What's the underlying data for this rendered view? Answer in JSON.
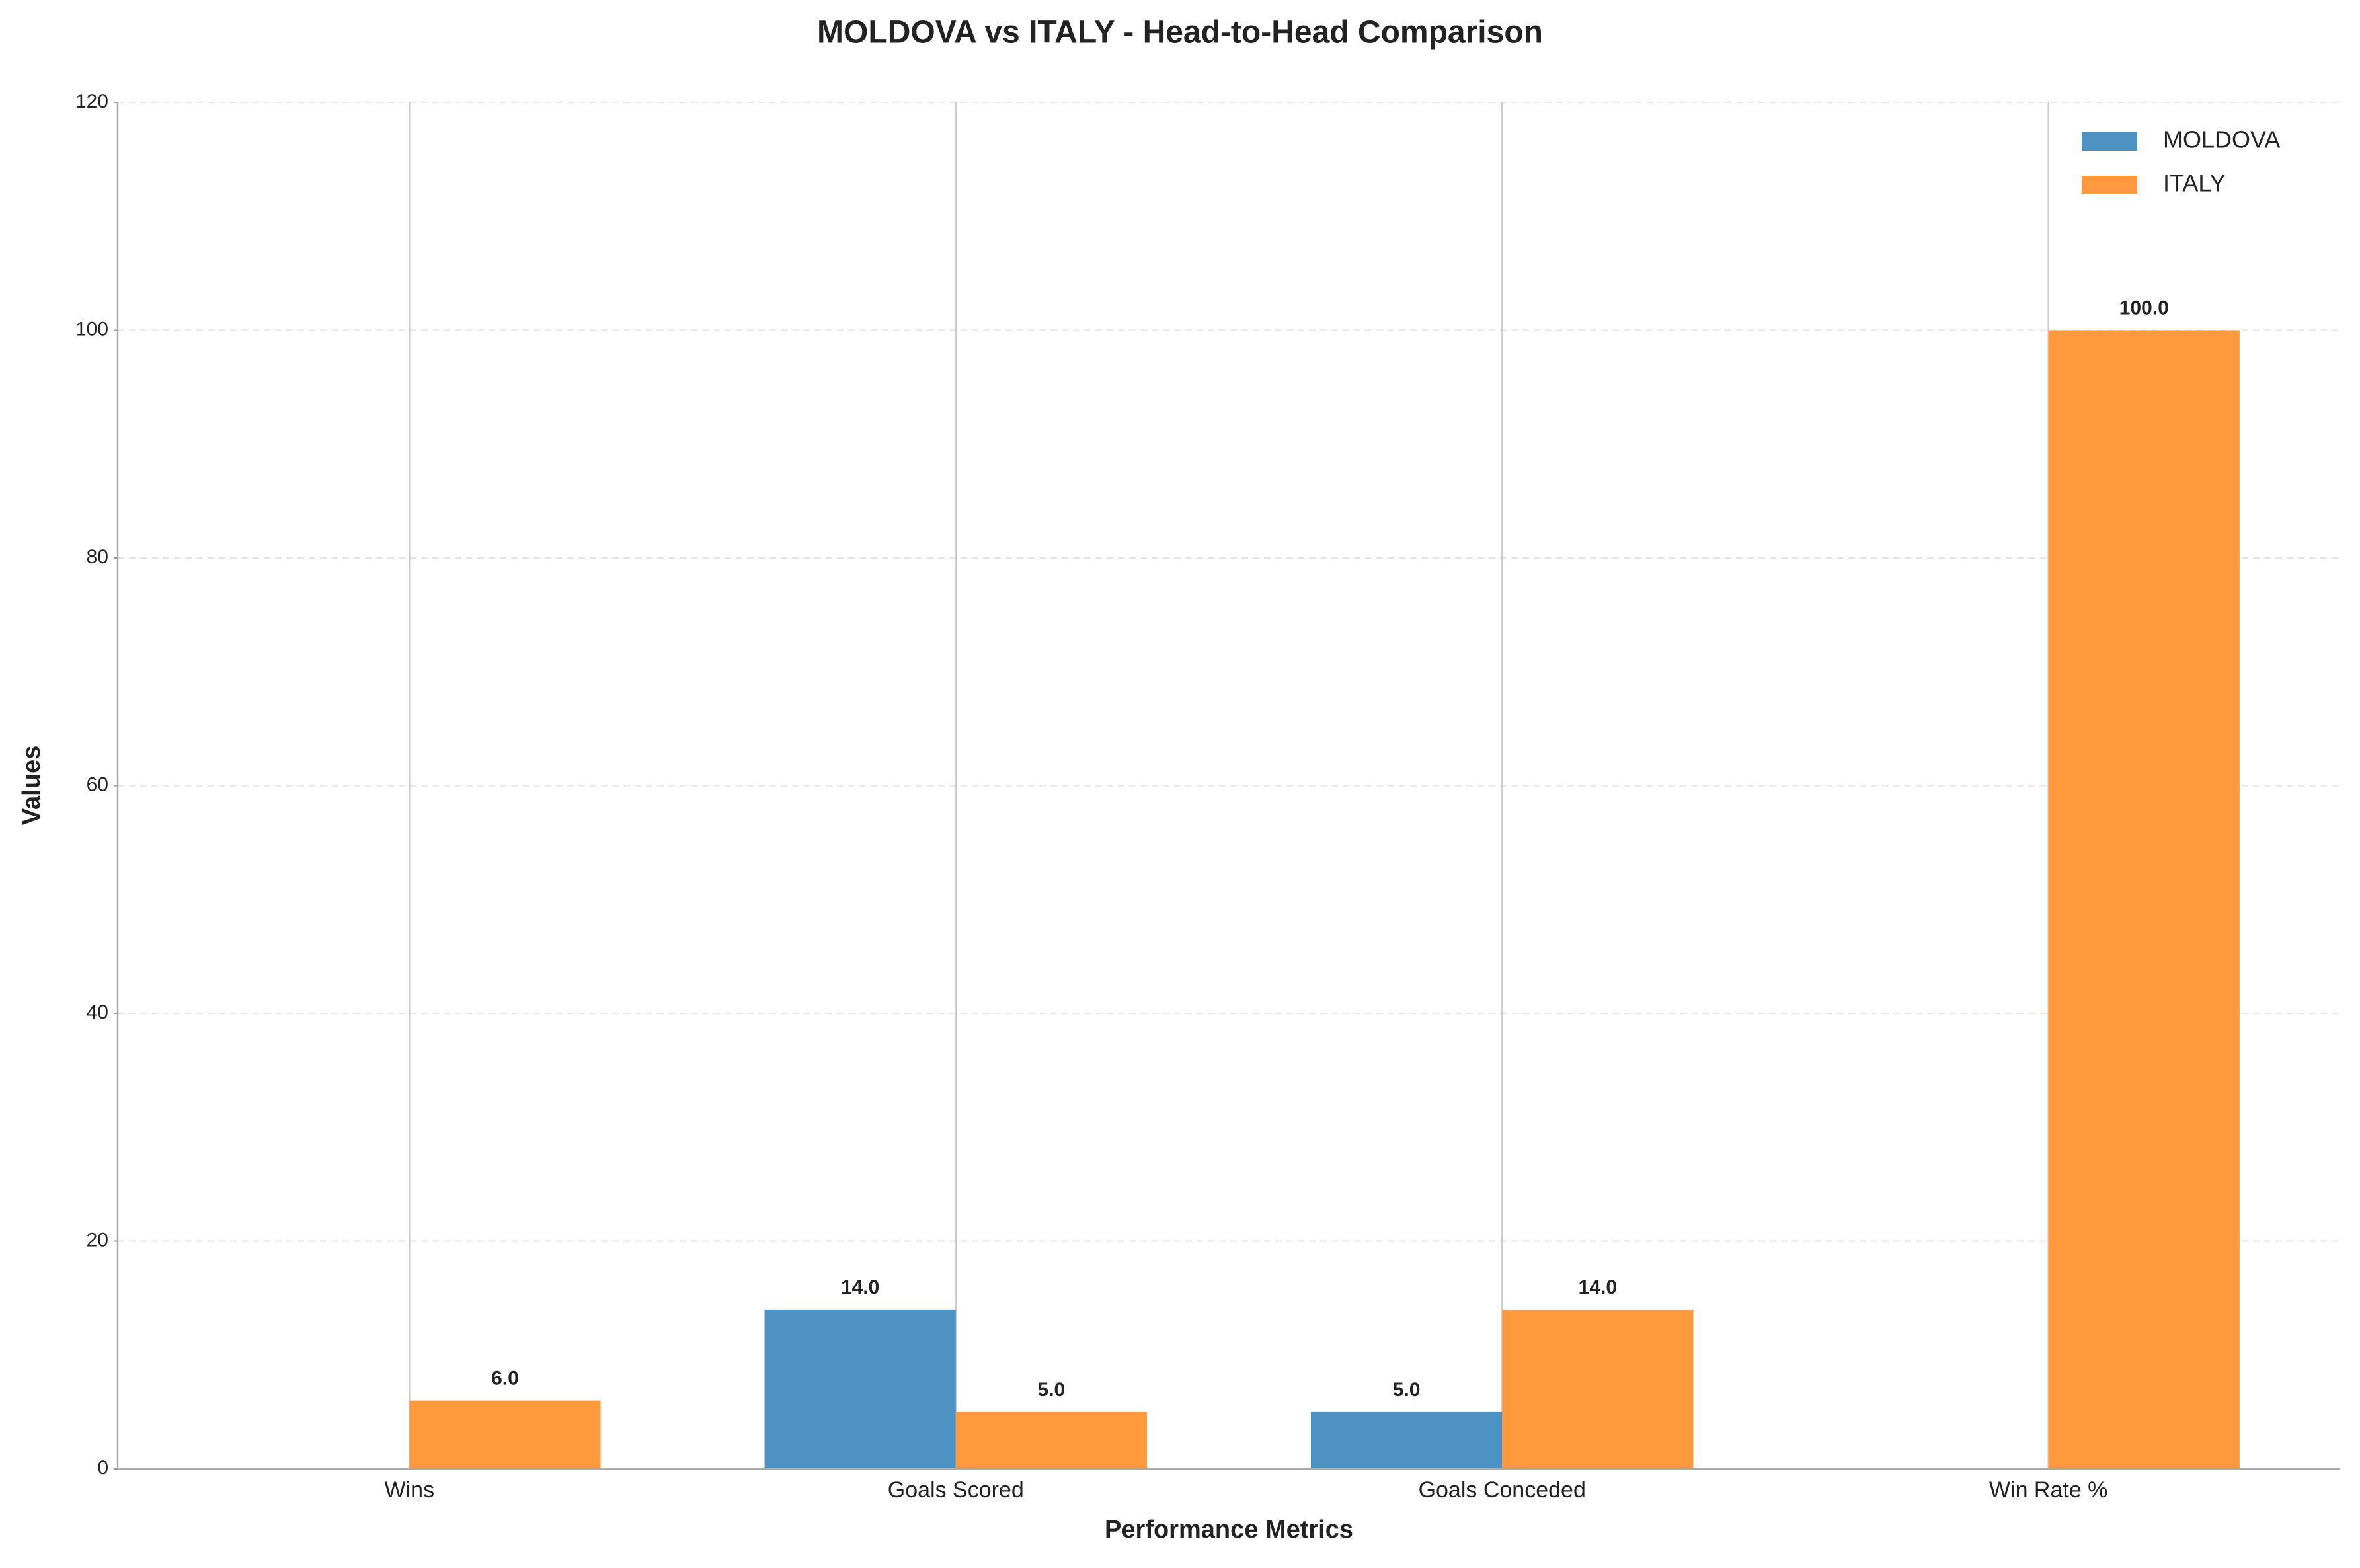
{
  "chart_data": {
    "type": "bar",
    "title": "MOLDOVA vs ITALY - Head-to-Head Comparison",
    "x_label": "Performance Metrics",
    "y_label": "Values",
    "categories": [
      "Wins",
      "Goals Scored",
      "Goals Conceded",
      "Win Rate %"
    ],
    "series": [
      {
        "name": "MOLDOVA",
        "color": "#4c92c3",
        "values": [
          0,
          14,
          5,
          0
        ],
        "value_labels": [
          null,
          "14.0",
          "5.0",
          null
        ]
      },
      {
        "name": "ITALY",
        "color": "#ff993e",
        "values": [
          6,
          5,
          14,
          100
        ],
        "value_labels": [
          "6.0",
          "5.0",
          "14.0",
          "100.0"
        ]
      }
    ],
    "ylim": [
      0,
      120
    ],
    "yticks": [
      0,
      20,
      40,
      60,
      80,
      100,
      120
    ],
    "grid": true,
    "legend": "upper right"
  }
}
